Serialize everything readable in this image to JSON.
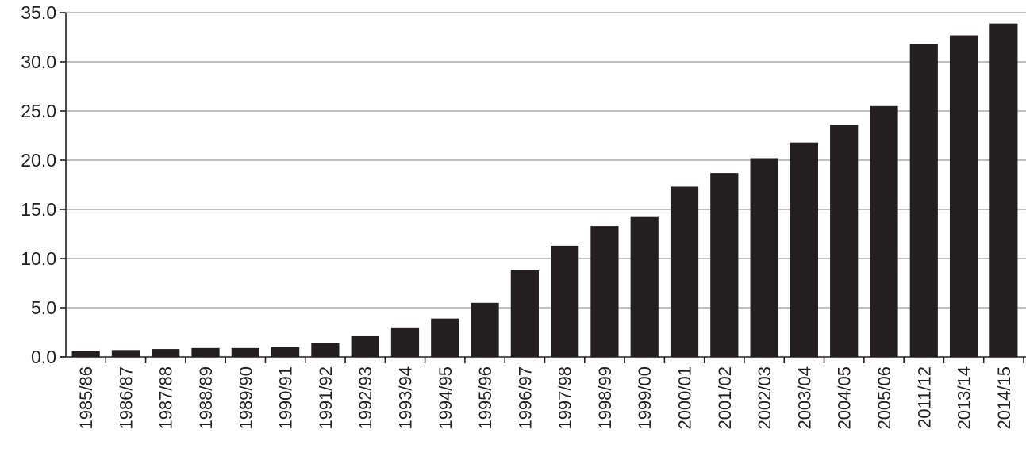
{
  "chart_data": {
    "type": "bar",
    "title": "",
    "xlabel": "",
    "ylabel": "",
    "ylim": [
      0,
      35
    ],
    "yticks": [
      "0.0",
      "5.0",
      "10.0",
      "15.0",
      "20.0",
      "25.0",
      "30.0",
      "35.0"
    ],
    "grid": true,
    "bar_color": "#231f20",
    "categories": [
      "1985/86",
      "1986/87",
      "1987/88",
      "1988/89",
      "1989/90",
      "1990/91",
      "1991/92",
      "1992/93",
      "1993/94",
      "1994/95",
      "1995/96",
      "1996/97",
      "1997/98",
      "1998/99",
      "1999/00",
      "2000/01",
      "2001/02",
      "2002/03",
      "2003/04",
      "2004/05",
      "2005/06",
      "2011/12",
      "2013/14",
      "2014/15"
    ],
    "values": [
      0.6,
      0.7,
      0.8,
      0.9,
      0.9,
      1.0,
      1.4,
      2.1,
      3.0,
      3.9,
      5.5,
      8.8,
      11.3,
      13.3,
      14.3,
      17.3,
      18.7,
      20.2,
      21.8,
      23.6,
      25.5,
      31.8,
      32.7,
      33.9
    ]
  }
}
